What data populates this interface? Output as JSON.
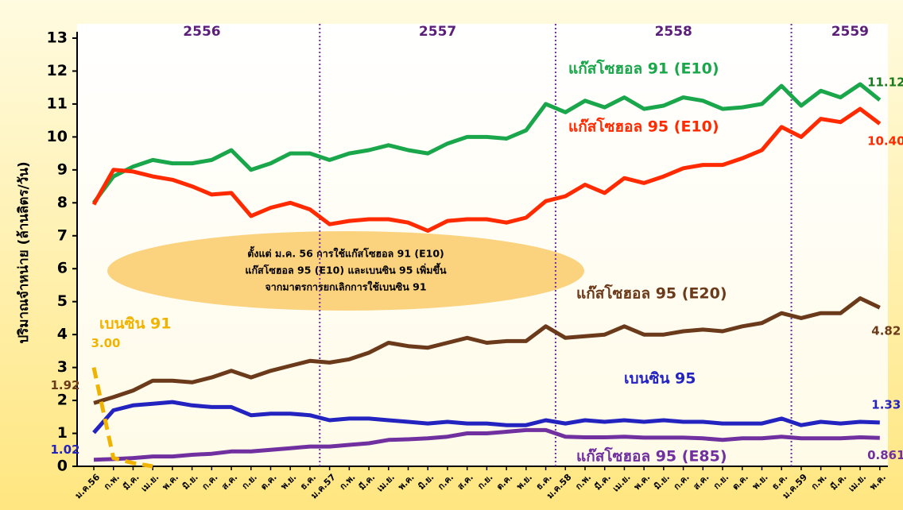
{
  "chart_data": {
    "type": "line",
    "y_label": "ปริมาณจำหน่าย  (ล้านลิตร/วัน)",
    "years": [
      "2556",
      "2557",
      "2558",
      "2559"
    ],
    "categories": [
      "ม.ค.56",
      "ก.พ.",
      "มี.ค.",
      "เม.ย.",
      "พ.ค.",
      "มิ.ย.",
      "ก.ค.",
      "ส.ค.",
      "ก.ย.",
      "ต.ค.",
      "พ.ย.",
      "ธ.ค.",
      "ม.ค.57",
      "ก.พ.",
      "มี.ค.",
      "เม.ย.",
      "พ.ค.",
      "มิ.ย.",
      "ก.ค.",
      "ส.ค.",
      "ก.ย.",
      "ต.ค.",
      "พ.ย.",
      "ธ.ค.",
      "ม.ค.58",
      "ก.พ.",
      "มี.ค.",
      "เม.ย.",
      "พ.ค.",
      "มิ.ย.",
      "ก.ค.",
      "ส.ค.",
      "ก.ย.",
      "ต.ค.",
      "พ.ย.",
      "ธ.ค.",
      "ม.ค.59",
      "ก.พ.",
      "มี.ค.",
      "เม.ย.",
      "พ.ค."
    ],
    "ylim": [
      0,
      13
    ],
    "yticks": [
      0,
      1,
      2,
      3,
      4,
      5,
      6,
      7,
      8,
      9,
      10,
      11,
      12,
      13
    ],
    "annotation": [
      "ตั้งแต่ ม.ค. 56 การใช้แก๊สโซฮอล 91 (E10)",
      "แก๊สโซฮอล 95 (E10) และเบนซิน 95 เพิ่มขึ้น",
      "จากมาตรการยกเลิกการใช้เบนซิน  91"
    ],
    "series": [
      {
        "name": "แก๊สโซฮอล 91 (E10)",
        "color": "#1aa64a",
        "values": [
          8.0,
          8.8,
          9.1,
          9.3,
          9.2,
          9.2,
          9.3,
          9.6,
          9.0,
          9.2,
          9.5,
          9.5,
          9.3,
          9.5,
          9.6,
          9.75,
          9.6,
          9.5,
          9.8,
          10.0,
          10.0,
          9.95,
          10.2,
          11.0,
          10.75,
          11.1,
          10.9,
          11.2,
          10.85,
          10.95,
          11.2,
          11.1,
          10.85,
          10.9,
          11.0,
          11.55,
          10.95,
          11.4,
          11.2,
          11.6,
          11.12
        ],
        "value_labels": [
          null,
          null,
          null,
          null,
          null,
          null,
          null,
          null,
          null,
          null,
          null,
          null,
          null,
          null,
          null,
          null,
          null,
          null,
          null,
          null,
          null,
          null,
          null,
          null,
          null,
          null,
          null,
          null,
          null,
          null,
          null,
          null,
          null,
          null,
          null,
          null,
          null,
          null,
          null,
          null,
          "11.12"
        ]
      },
      {
        "name": "แก๊สโซฮอล 95 (E10)",
        "color": "#ff2a00",
        "values": [
          7.95,
          9.0,
          8.95,
          8.8,
          8.7,
          8.5,
          8.25,
          8.3,
          7.6,
          7.85,
          8.0,
          7.8,
          7.35,
          7.45,
          7.5,
          7.5,
          7.4,
          7.15,
          7.45,
          7.5,
          7.5,
          7.4,
          7.55,
          8.05,
          8.2,
          8.55,
          8.3,
          8.75,
          8.6,
          8.8,
          9.05,
          9.15,
          9.15,
          9.35,
          9.6,
          10.3,
          10.0,
          10.55,
          10.45,
          10.85,
          10.4
        ],
        "value_labels": [
          null,
          null,
          null,
          null,
          null,
          null,
          null,
          null,
          null,
          null,
          null,
          null,
          null,
          null,
          null,
          null,
          null,
          null,
          null,
          null,
          null,
          null,
          null,
          null,
          null,
          null,
          null,
          null,
          null,
          null,
          null,
          null,
          null,
          null,
          null,
          null,
          null,
          null,
          null,
          null,
          "10.40"
        ]
      },
      {
        "name": "แก๊สโซฮอล 95 (E20)",
        "color": "#6b3a1a",
        "values": [
          1.92,
          2.1,
          2.3,
          2.6,
          2.6,
          2.55,
          2.7,
          2.9,
          2.7,
          2.9,
          3.05,
          3.2,
          3.15,
          3.25,
          3.45,
          3.75,
          3.65,
          3.6,
          3.75,
          3.9,
          3.75,
          3.8,
          3.8,
          4.25,
          3.9,
          3.95,
          4.0,
          4.25,
          4.0,
          4.0,
          4.1,
          4.15,
          4.1,
          4.25,
          4.35,
          4.65,
          4.5,
          4.65,
          4.65,
          5.1,
          4.82
        ],
        "value_labels": [
          "1.92",
          null,
          null,
          null,
          null,
          null,
          null,
          null,
          null,
          null,
          null,
          null,
          null,
          null,
          null,
          null,
          null,
          null,
          null,
          null,
          null,
          null,
          null,
          null,
          null,
          null,
          null,
          null,
          null,
          null,
          null,
          null,
          null,
          null,
          null,
          null,
          null,
          null,
          null,
          null,
          "4.82"
        ]
      },
      {
        "name": "เบนซิน 95",
        "color": "#2323c0",
        "values": [
          1.02,
          1.7,
          1.85,
          1.9,
          1.95,
          1.85,
          1.8,
          1.8,
          1.55,
          1.6,
          1.6,
          1.55,
          1.4,
          1.45,
          1.45,
          1.4,
          1.35,
          1.3,
          1.35,
          1.3,
          1.3,
          1.25,
          1.25,
          1.4,
          1.3,
          1.4,
          1.35,
          1.4,
          1.35,
          1.4,
          1.35,
          1.35,
          1.3,
          1.3,
          1.3,
          1.45,
          1.25,
          1.35,
          1.3,
          1.35,
          1.33
        ],
        "value_labels": [
          "1.02",
          null,
          null,
          null,
          null,
          null,
          null,
          null,
          null,
          null,
          null,
          null,
          null,
          null,
          null,
          null,
          null,
          null,
          null,
          null,
          null,
          null,
          null,
          null,
          null,
          null,
          null,
          null,
          null,
          null,
          null,
          null,
          null,
          null,
          null,
          null,
          null,
          null,
          null,
          null,
          "1.33"
        ]
      },
      {
        "name": "แก๊สโซฮอล 95 (E85)",
        "color": "#7030a0",
        "values": [
          0.2,
          0.22,
          0.25,
          0.3,
          0.3,
          0.35,
          0.38,
          0.45,
          0.45,
          0.5,
          0.55,
          0.6,
          0.6,
          0.65,
          0.7,
          0.8,
          0.82,
          0.85,
          0.9,
          1.0,
          1.0,
          1.05,
          1.1,
          1.1,
          0.9,
          0.88,
          0.88,
          0.9,
          0.87,
          0.87,
          0.87,
          0.85,
          0.8,
          0.85,
          0.85,
          0.9,
          0.85,
          0.85,
          0.85,
          0.88,
          0.861
        ],
        "value_labels": [
          null,
          null,
          null,
          null,
          null,
          null,
          null,
          null,
          null,
          null,
          null,
          null,
          null,
          null,
          null,
          null,
          null,
          null,
          null,
          null,
          null,
          null,
          null,
          null,
          null,
          null,
          null,
          null,
          null,
          null,
          null,
          null,
          null,
          null,
          null,
          null,
          null,
          null,
          null,
          null,
          "0.861"
        ]
      },
      {
        "name": "เบนซิน 91",
        "color": "#f0b400",
        "dashed": true,
        "values": [
          3.0,
          0.25,
          0.1,
          0.0,
          null,
          null,
          null,
          null,
          null,
          null,
          null,
          null,
          null,
          null,
          null,
          null,
          null,
          null,
          null,
          null,
          null,
          null,
          null,
          null,
          null,
          null,
          null,
          null,
          null,
          null,
          null,
          null,
          null,
          null,
          null,
          null,
          null,
          null,
          null,
          null,
          null
        ],
        "value_labels": [
          "3.00",
          null,
          null,
          null,
          null,
          null,
          null,
          null,
          null,
          null,
          null,
          null,
          null,
          null,
          null,
          null,
          null,
          null,
          null,
          null,
          null,
          null,
          null,
          null,
          null,
          null,
          null,
          null,
          null,
          null,
          null,
          null,
          null,
          null,
          null,
          null,
          null,
          null,
          null,
          null,
          null
        ]
      }
    ]
  }
}
